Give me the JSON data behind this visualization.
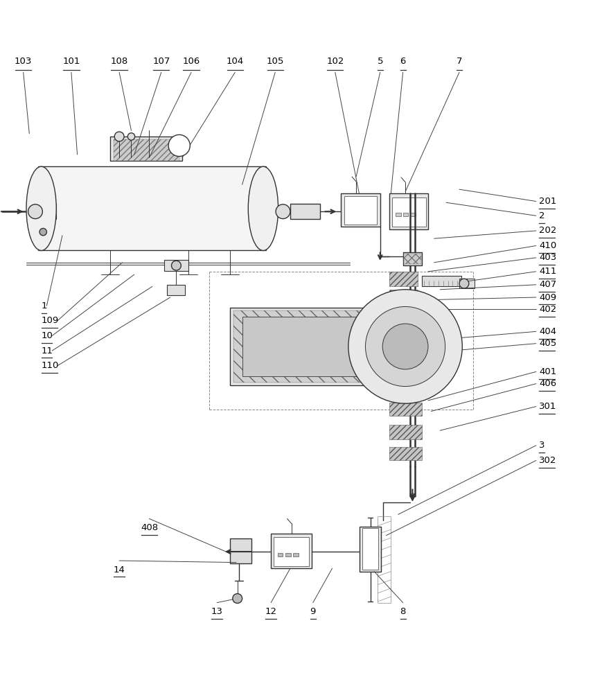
{
  "bg_color": "#ffffff",
  "line_color": "#333333",
  "label_color": "#000000",
  "title": "",
  "figsize": [
    8.69,
    10.0
  ],
  "dpi": 100
}
